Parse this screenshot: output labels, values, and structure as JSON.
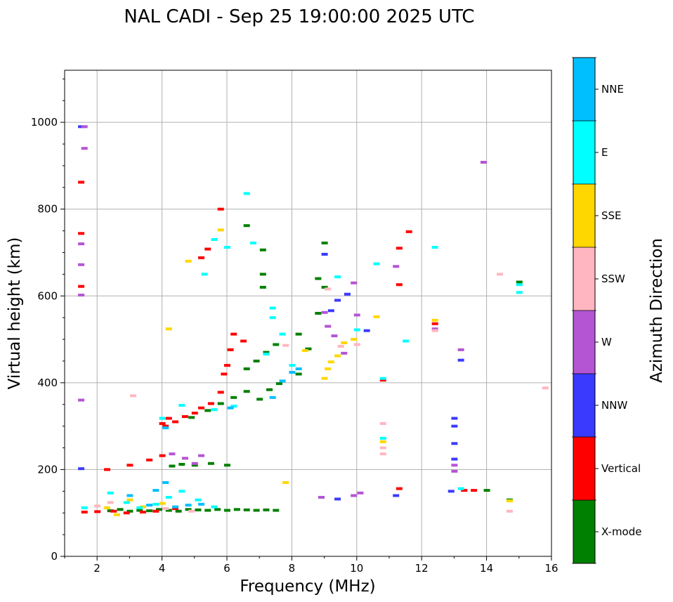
{
  "chart_data": {
    "type": "scatter",
    "title": "NAL CADI - Sep 25 19:00:00 2025 UTC",
    "xlabel": "Frequency (MHz)",
    "ylabel": "Virtual height (km)",
    "xlim": [
      1,
      16
    ],
    "ylim": [
      0,
      1120
    ],
    "xticks": [
      2,
      4,
      6,
      8,
      10,
      12,
      14,
      16
    ],
    "xtick_labels": [
      "2",
      "4",
      "6",
      "8",
      "10",
      "12",
      "14",
      "16"
    ],
    "yticks": [
      0,
      200,
      400,
      600,
      800,
      1000
    ],
    "ytick_labels": [
      "0",
      "200",
      "400",
      "600",
      "800",
      "1000"
    ],
    "grid": true,
    "colorbar": {
      "label": "Azimuth Direction",
      "categories": [
        "X-mode",
        "Vertical",
        "NNW",
        "W",
        "SSW",
        "SSE",
        "E",
        "NNE"
      ],
      "colors": [
        "#008000",
        "#ff0000",
        "#3a3aff",
        "#b455d4",
        "#ffb6c1",
        "#ffd700",
        "#00ffff",
        "#00bfff"
      ]
    },
    "series": [
      {
        "name": "X-mode",
        "points": [
          [
            2.4,
            105
          ],
          [
            2.7,
            108
          ],
          [
            3.0,
            104
          ],
          [
            3.3,
            106
          ],
          [
            3.6,
            105
          ],
          [
            3.9,
            108
          ],
          [
            4.2,
            106
          ],
          [
            4.5,
            104
          ],
          [
            4.8,
            108
          ],
          [
            5.1,
            107
          ],
          [
            5.4,
            106
          ],
          [
            5.7,
            108
          ],
          [
            6.0,
            106
          ],
          [
            6.3,
            108
          ],
          [
            6.6,
            107
          ],
          [
            6.9,
            106
          ],
          [
            7.2,
            107
          ],
          [
            7.5,
            106
          ],
          [
            4.3,
            208
          ],
          [
            4.6,
            212
          ],
          [
            5.0,
            210
          ],
          [
            5.5,
            214
          ],
          [
            6.0,
            210
          ],
          [
            4.9,
            320
          ],
          [
            5.4,
            336
          ],
          [
            5.8,
            352
          ],
          [
            6.2,
            366
          ],
          [
            6.6,
            380
          ],
          [
            7.0,
            362
          ],
          [
            7.3,
            384
          ],
          [
            7.6,
            398
          ],
          [
            6.6,
            432
          ],
          [
            6.9,
            450
          ],
          [
            7.2,
            470
          ],
          [
            7.5,
            488
          ],
          [
            8.2,
            420
          ],
          [
            8.5,
            478
          ],
          [
            8.8,
            560
          ],
          [
            9.0,
            620
          ],
          [
            8.8,
            640
          ],
          [
            9.0,
            722
          ],
          [
            7.1,
            620
          ],
          [
            7.1,
            650
          ],
          [
            7.1,
            706
          ],
          [
            6.6,
            762
          ],
          [
            8.2,
            512
          ],
          [
            14.0,
            152
          ],
          [
            14.7,
            130
          ],
          [
            15.0,
            632
          ]
        ]
      },
      {
        "name": "Vertical",
        "points": [
          [
            1.6,
            102
          ],
          [
            2.0,
            103
          ],
          [
            2.5,
            104
          ],
          [
            2.9,
            100
          ],
          [
            3.4,
            102
          ],
          [
            3.8,
            104
          ],
          [
            4.4,
            110
          ],
          [
            2.3,
            200
          ],
          [
            3.0,
            210
          ],
          [
            3.6,
            222
          ],
          [
            4.0,
            232
          ],
          [
            4.1,
            300
          ],
          [
            4.4,
            310
          ],
          [
            4.7,
            322
          ],
          [
            5.0,
            330
          ],
          [
            5.2,
            342
          ],
          [
            5.5,
            352
          ],
          [
            5.8,
            378
          ],
          [
            5.9,
            420
          ],
          [
            6.0,
            440
          ],
          [
            6.1,
            476
          ],
          [
            6.2,
            512
          ],
          [
            6.5,
            496
          ],
          [
            5.2,
            688
          ],
          [
            5.4,
            708
          ],
          [
            5.8,
            800
          ],
          [
            1.5,
            862
          ],
          [
            1.5,
            744
          ],
          [
            1.5,
            622
          ],
          [
            4.0,
            306
          ],
          [
            4.2,
            318
          ],
          [
            11.3,
            156
          ],
          [
            11.3,
            626
          ],
          [
            11.3,
            710
          ],
          [
            11.6,
            748
          ],
          [
            13.3,
            152
          ],
          [
            13.6,
            152
          ],
          [
            12.4,
            536
          ],
          [
            10.8,
            406
          ]
        ]
      },
      {
        "name": "NNW",
        "points": [
          [
            1.5,
            202
          ],
          [
            9.0,
            696
          ],
          [
            9.2,
            566
          ],
          [
            9.4,
            590
          ],
          [
            9.7,
            604
          ],
          [
            10.3,
            520
          ],
          [
            11.2,
            140
          ],
          [
            12.9,
            150
          ],
          [
            13.0,
            224
          ],
          [
            13.0,
            260
          ],
          [
            13.0,
            300
          ],
          [
            13.0,
            318
          ],
          [
            13.2,
            452
          ],
          [
            9.4,
            132
          ],
          [
            1.5,
            990
          ]
        ]
      },
      {
        "name": "W",
        "points": [
          [
            1.5,
            360
          ],
          [
            1.6,
            990
          ],
          [
            1.6,
            940
          ],
          [
            1.5,
            720
          ],
          [
            1.5,
            672
          ],
          [
            1.5,
            602
          ],
          [
            4.3,
            236
          ],
          [
            4.7,
            226
          ],
          [
            5.0,
            214
          ],
          [
            5.2,
            232
          ],
          [
            9.0,
            562
          ],
          [
            9.1,
            530
          ],
          [
            9.3,
            508
          ],
          [
            9.6,
            468
          ],
          [
            9.9,
            630
          ],
          [
            10.0,
            556
          ],
          [
            8.9,
            136
          ],
          [
            9.9,
            140
          ],
          [
            10.1,
            146
          ],
          [
            11.2,
            668
          ],
          [
            12.4,
            524
          ],
          [
            13.0,
            196
          ],
          [
            13.0,
            210
          ],
          [
            13.2,
            476
          ],
          [
            13.9,
            908
          ]
        ]
      },
      {
        "name": "SSW",
        "points": [
          [
            2.0,
            116
          ],
          [
            2.4,
            124
          ],
          [
            3.1,
            370
          ],
          [
            4.1,
            110
          ],
          [
            4.9,
            104
          ],
          [
            7.8,
            486
          ],
          [
            9.1,
            616
          ],
          [
            9.5,
            484
          ],
          [
            10.0,
            488
          ],
          [
            10.8,
            306
          ],
          [
            10.8,
            236
          ],
          [
            10.8,
            250
          ],
          [
            12.4,
            520
          ],
          [
            14.4,
            650
          ],
          [
            14.7,
            104
          ],
          [
            15.8,
            388
          ]
        ]
      },
      {
        "name": "SSE",
        "points": [
          [
            2.3,
            112
          ],
          [
            2.6,
            96
          ],
          [
            3.0,
            130
          ],
          [
            3.4,
            114
          ],
          [
            4.0,
            122
          ],
          [
            4.8,
            680
          ],
          [
            5.8,
            752
          ],
          [
            7.8,
            170
          ],
          [
            8.4,
            474
          ],
          [
            9.0,
            410
          ],
          [
            9.1,
            432
          ],
          [
            9.2,
            448
          ],
          [
            9.4,
            462
          ],
          [
            9.6,
            492
          ],
          [
            9.9,
            500
          ],
          [
            10.6,
            552
          ],
          [
            10.8,
            264
          ],
          [
            12.4,
            544
          ],
          [
            14.7,
            128
          ],
          [
            4.2,
            524
          ]
        ]
      },
      {
        "name": "E",
        "points": [
          [
            1.6,
            112
          ],
          [
            2.4,
            146
          ],
          [
            2.9,
            124
          ],
          [
            3.3,
            112
          ],
          [
            3.8,
            120
          ],
          [
            4.2,
            136
          ],
          [
            4.6,
            150
          ],
          [
            5.1,
            130
          ],
          [
            5.6,
            114
          ],
          [
            4.0,
            318
          ],
          [
            4.6,
            348
          ],
          [
            5.6,
            338
          ],
          [
            6.2,
            346
          ],
          [
            5.3,
            650
          ],
          [
            5.6,
            730
          ],
          [
            6.0,
            712
          ],
          [
            6.6,
            836
          ],
          [
            6.8,
            722
          ],
          [
            7.2,
            466
          ],
          [
            7.4,
            572
          ],
          [
            7.4,
            550
          ],
          [
            8.0,
            440
          ],
          [
            9.4,
            644
          ],
          [
            10.0,
            522
          ],
          [
            10.6,
            674
          ],
          [
            10.8,
            410
          ],
          [
            10.8,
            272
          ],
          [
            11.5,
            496
          ],
          [
            12.4,
            712
          ],
          [
            13.2,
            156
          ],
          [
            15.0,
            608
          ],
          [
            15.0,
            626
          ],
          [
            7.7,
            512
          ]
        ]
      },
      {
        "name": "NNE",
        "points": [
          [
            3.0,
            140
          ],
          [
            3.6,
            118
          ],
          [
            3.8,
            152
          ],
          [
            4.1,
            170
          ],
          [
            4.8,
            118
          ],
          [
            5.2,
            120
          ],
          [
            4.1,
            296
          ],
          [
            6.1,
            342
          ],
          [
            7.4,
            366
          ],
          [
            7.7,
            404
          ],
          [
            8.2,
            432
          ],
          [
            8.0,
            424
          ],
          [
            4.4,
            114
          ]
        ]
      }
    ]
  }
}
